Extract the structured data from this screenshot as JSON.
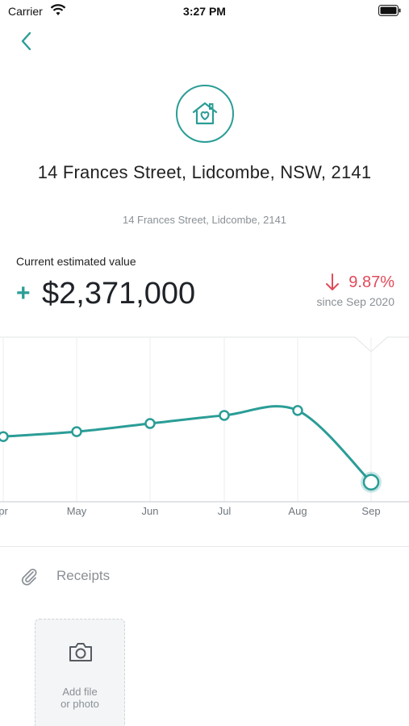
{
  "status_bar": {
    "carrier": "Carrier",
    "time": "3:27 PM"
  },
  "property": {
    "title": "14 Frances Street, Lidcombe, NSW, 2141",
    "subtitle": "14 Frances Street, Lidcombe, 2141"
  },
  "valuation": {
    "label": "Current estimated value",
    "sign": "+",
    "amount": "$2,371,000",
    "change_percent": "9.87%",
    "change_since": "since Sep 2020",
    "change_direction": "down"
  },
  "colors": {
    "accent": "#2a9d96",
    "negative": "#e14a5a",
    "muted": "#8a9096"
  },
  "chart_data": {
    "type": "line",
    "categories": [
      "pr",
      "May",
      "Jun",
      "Jul",
      "Aug",
      "Sep"
    ],
    "series": [
      {
        "values": [
          0.4,
          0.43,
          0.48,
          0.53,
          0.56,
          0.12
        ]
      }
    ],
    "grid": true,
    "highlight_last": true
  },
  "receipts": {
    "label": "Receipts",
    "icon": "paperclip-icon",
    "add_label_line1": "Add file",
    "add_label_line2": "or photo"
  }
}
